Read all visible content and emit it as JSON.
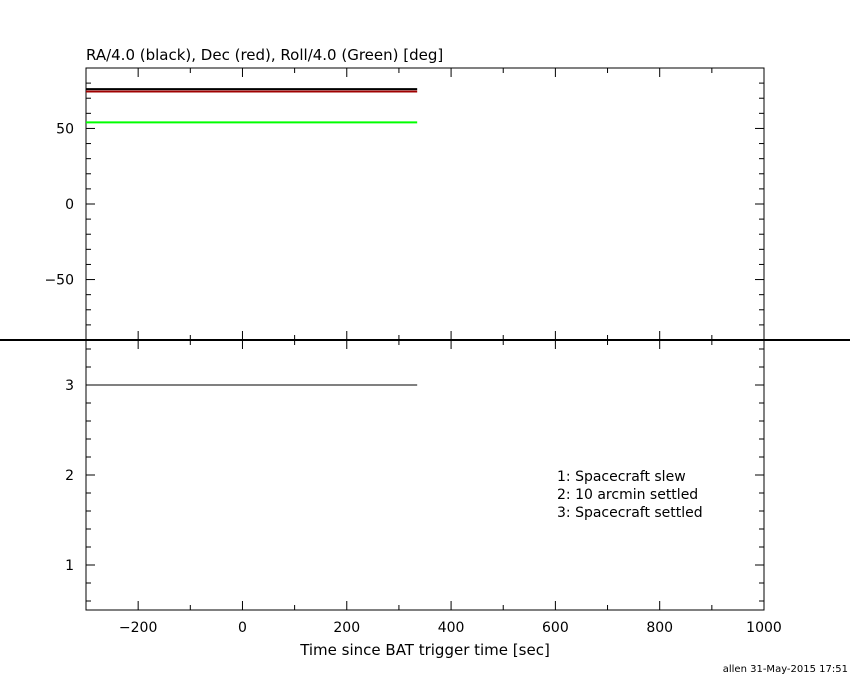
{
  "chart_data": [
    {
      "type": "line",
      "title": "RA/4.0 (black), Dec (red), Roll/4.0 (Green) [deg]",
      "xlabel": "",
      "ylabel": "",
      "xlim": [
        -300,
        1000
      ],
      "ylim": [
        -90,
        90
      ],
      "x_ticks": [
        -200,
        0,
        200,
        400,
        600,
        800,
        1000
      ],
      "y_ticks": [
        -50,
        0,
        50
      ],
      "y_tick_labels": [
        "−50",
        "0",
        "50"
      ],
      "grid": false,
      "series": [
        {
          "color": "#000000",
          "x": [
            -300,
            335
          ],
          "y": [
            75,
            75
          ]
        },
        {
          "color": "#a00000",
          "x": [
            -300,
            335
          ],
          "y": [
            75,
            75
          ]
        },
        {
          "color": "#00ff00",
          "x": [
            -300,
            335
          ],
          "y": [
            54,
            54
          ]
        }
      ]
    },
    {
      "type": "line",
      "title": "",
      "xlabel": "Time since BAT trigger time [sec]",
      "ylabel": "",
      "xlim": [
        -300,
        1000
      ],
      "ylim": [
        0.5,
        3.5
      ],
      "x_ticks": [
        -200,
        0,
        200,
        400,
        600,
        800,
        1000
      ],
      "x_tick_labels": [
        "−200",
        "0",
        "200",
        "400",
        "600",
        "800",
        "1000"
      ],
      "y_ticks": [
        1,
        2,
        3
      ],
      "y_tick_labels": [
        "1",
        "2",
        "3"
      ],
      "grid": false,
      "series": [
        {
          "color": "#000000",
          "x": [
            -300,
            335
          ],
          "y": [
            3,
            3
          ]
        }
      ],
      "annotations": [
        "1: Spacecraft slew",
        "2: 10 arcmin settled",
        "3: Spacecraft settled"
      ]
    }
  ],
  "footer": {
    "stamp": "allen 31-May-2015 17:51"
  }
}
